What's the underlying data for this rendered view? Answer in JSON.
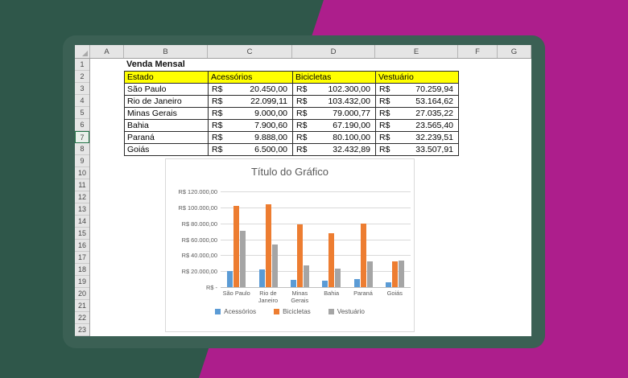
{
  "colors": {
    "background_green": "#2F574A",
    "accent_magenta": "#AD1E8C",
    "window_frame": "#3B6054",
    "table_header_bg": "#FFFF00",
    "header_strip_bg": "#E5E5E5",
    "chart_text": "#595959"
  },
  "spreadsheet": {
    "column_headers": [
      "A",
      "B",
      "C",
      "D",
      "E",
      "F",
      "G"
    ],
    "row_numbers": [
      1,
      2,
      3,
      4,
      5,
      6,
      7,
      8,
      9,
      10,
      11,
      12,
      13,
      14,
      15,
      16,
      17,
      18,
      19,
      20,
      21,
      22,
      23
    ],
    "active_row": 7,
    "title_cell": "Venda Mensal",
    "table": {
      "currency_prefix": "R$",
      "headers": [
        "Estado",
        "Acessórios",
        "Bicicletas",
        "Vestuário"
      ],
      "rows": [
        {
          "estado": "São Paulo",
          "values": [
            "20.450,00",
            "102.300,00",
            "70.259,94"
          ]
        },
        {
          "estado": "Rio de Janeiro",
          "values": [
            "22.099,11",
            "103.432,00",
            "53.164,62"
          ]
        },
        {
          "estado": "Minas Gerais",
          "values": [
            "9.000,00",
            "79.000,77",
            "27.035,22"
          ]
        },
        {
          "estado": "Bahia",
          "values": [
            "7.900,60",
            "67.190,00",
            "23.565,40"
          ]
        },
        {
          "estado": "Paraná",
          "values": [
            "9.888,00",
            "80.100,00",
            "32.239,51"
          ]
        },
        {
          "estado": "Goiás",
          "values": [
            "6.500,00",
            "32.432,89",
            "33.507,91"
          ]
        }
      ]
    }
  },
  "chart_data": {
    "type": "bar",
    "title": "Título do Gráfico",
    "categories": [
      "São Paulo",
      "Rio de Janeiro",
      "Minas Gerais",
      "Bahia",
      "Paraná",
      "Goiás"
    ],
    "series": [
      {
        "name": "Acessórios",
        "color": "#5B9BD5",
        "values": [
          20450,
          22099.11,
          9000,
          7900.6,
          9888,
          6500
        ]
      },
      {
        "name": "Bicicletas",
        "color": "#ED7D31",
        "values": [
          102300,
          103432,
          79000.77,
          67190,
          80100,
          32432.89
        ]
      },
      {
        "name": "Vestuário",
        "color": "#A5A5A5",
        "values": [
          70259.94,
          53164.62,
          27035.22,
          23565.4,
          32239.51,
          33507.91
        ]
      }
    ],
    "y_axis": {
      "max": 120000,
      "ticks": [
        {
          "label": "R$ 120.000,00",
          "value": 120000
        },
        {
          "label": "R$ 100.000,00",
          "value": 100000
        },
        {
          "label": "R$ 80.000,00",
          "value": 80000
        },
        {
          "label": "R$ 60.000,00",
          "value": 60000
        },
        {
          "label": "R$ 40.000,00",
          "value": 40000
        },
        {
          "label": "R$ 20.000,00",
          "value": 20000
        },
        {
          "label": "R$ -",
          "value": 0
        }
      ]
    },
    "grid": true,
    "legend_position": "bottom"
  }
}
